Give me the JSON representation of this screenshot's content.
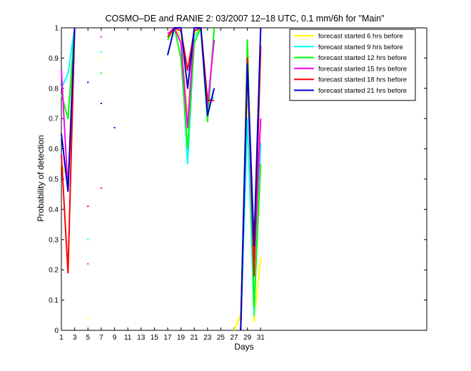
{
  "chart_data": {
    "type": "line",
    "title": "COSMO–DE and RANIE 2: 03/2007 12–18 UTC, 0.1 mm/6h for \"Main\"",
    "xlabel": "Days",
    "ylabel": "Probability of detection",
    "xlim": [
      1,
      56
    ],
    "ylim": [
      0,
      1
    ],
    "xticks": [
      1,
      3,
      5,
      7,
      9,
      11,
      13,
      15,
      17,
      19,
      21,
      23,
      25,
      27,
      29,
      31
    ],
    "yticks": [
      0,
      0.1,
      0.2,
      0.3,
      0.4,
      0.5,
      0.6,
      0.7,
      0.8,
      0.9,
      1
    ],
    "grid": false,
    "legend_position": "top-right",
    "series": [
      {
        "name": "forecast started 6 hrs before",
        "color": "#ffff00",
        "points": [
          [
            1,
            0.55
          ],
          [
            2,
            0.5
          ],
          [
            3,
            1.0
          ],
          [
            null,
            null
          ],
          [
            5,
            0.04
          ],
          [
            null,
            null
          ],
          [
            7,
            0.9
          ],
          [
            null,
            null
          ],
          [
            17,
            0.97
          ],
          [
            18,
            1.0
          ],
          [
            19,
            0.97
          ],
          [
            20,
            0.7
          ],
          [
            21,
            0.98
          ],
          [
            22,
            1.0
          ],
          [
            null,
            null
          ],
          [
            27,
            0.0
          ],
          [
            28,
            0.05
          ],
          [
            29,
            0.8
          ],
          [
            30,
            0.03
          ],
          [
            31,
            0.24
          ]
        ]
      },
      {
        "name": "forecast started 9 hrs before",
        "color": "#00ffff",
        "points": [
          [
            1,
            0.8
          ],
          [
            2,
            0.85
          ],
          [
            3,
            1.0
          ],
          [
            null,
            null
          ],
          [
            5,
            0.3
          ],
          [
            null,
            null
          ],
          [
            7,
            0.92
          ],
          [
            null,
            null
          ],
          [
            17,
            0.97
          ],
          [
            18,
            1.0
          ],
          [
            19,
            0.95
          ],
          [
            20,
            0.55
          ],
          [
            21,
            0.97
          ],
          [
            22,
            1.0
          ],
          [
            23,
            0.76
          ],
          [
            24,
            0.77
          ],
          [
            null,
            null
          ],
          [
            28,
            0.0
          ],
          [
            29,
            0.7
          ],
          [
            30,
            0.05
          ],
          [
            31,
            0.62
          ]
        ]
      },
      {
        "name": "forecast started 12 hrs before",
        "color": "#00ff00",
        "points": [
          [
            1,
            0.78
          ],
          [
            2,
            0.7
          ],
          [
            3,
            1.0
          ],
          [
            null,
            null
          ],
          [
            5,
            0.41
          ],
          [
            null,
            null
          ],
          [
            7,
            0.85
          ],
          [
            null,
            null
          ],
          [
            17,
            0.96
          ],
          [
            18,
            1.0
          ],
          [
            19,
            0.9
          ],
          [
            20,
            0.6
          ],
          [
            21,
            0.95
          ],
          [
            22,
            1.0
          ],
          [
            23,
            0.69
          ],
          [
            24,
            1.0
          ],
          [
            null,
            null
          ],
          [
            28,
            0.0
          ],
          [
            29,
            0.96
          ],
          [
            30,
            0.08
          ],
          [
            31,
            0.55
          ]
        ]
      },
      {
        "name": "forecast started 15 hrs before",
        "color": "#ff00ff",
        "points": [
          [
            1,
            0.86
          ],
          [
            2,
            0.46
          ],
          [
            3,
            1.0
          ],
          [
            null,
            null
          ],
          [
            5,
            0.22
          ],
          [
            null,
            null
          ],
          [
            7,
            0.97
          ],
          [
            null,
            null
          ],
          [
            17,
            0.98
          ],
          [
            18,
            1.0
          ],
          [
            19,
            0.95
          ],
          [
            20,
            0.67
          ],
          [
            21,
            1.0
          ],
          [
            22,
            1.0
          ],
          [
            23,
            0.74
          ],
          [
            24,
            0.96
          ],
          [
            null,
            null
          ],
          [
            28,
            0.0
          ],
          [
            29,
            0.88
          ],
          [
            30,
            0.2
          ],
          [
            31,
            0.7
          ]
        ]
      },
      {
        "name": "forecast started 18 hrs before",
        "color": "#ff0000",
        "points": [
          [
            1,
            0.58
          ],
          [
            2,
            0.19
          ],
          [
            3,
            1.0
          ],
          [
            null,
            null
          ],
          [
            5,
            0.41
          ],
          [
            null,
            null
          ],
          [
            7,
            0.47
          ],
          [
            null,
            null
          ],
          [
            17,
            0.97
          ],
          [
            18,
            1.0
          ],
          [
            19,
            0.99
          ],
          [
            20,
            0.86
          ],
          [
            21,
            0.99
          ],
          [
            22,
            1.0
          ],
          [
            23,
            0.76
          ],
          [
            24,
            0.76
          ],
          [
            null,
            null
          ],
          [
            28,
            0.0
          ],
          [
            29,
            0.9
          ],
          [
            30,
            0.18
          ],
          [
            31,
            0.94
          ]
        ]
      },
      {
        "name": "forecast started 21 hrs before",
        "color": "#0000cc",
        "points": [
          [
            1,
            0.65
          ],
          [
            2,
            0.46
          ],
          [
            3,
            1.0
          ],
          [
            null,
            null
          ],
          [
            5,
            0.82
          ],
          [
            null,
            null
          ],
          [
            7,
            0.75
          ],
          [
            null,
            null
          ],
          [
            9,
            0.67
          ],
          [
            null,
            null
          ],
          [
            17,
            0.91
          ],
          [
            18,
            1.0
          ],
          [
            19,
            1.0
          ],
          [
            20,
            0.8
          ],
          [
            21,
            1.0
          ],
          [
            22,
            1.0
          ],
          [
            23,
            0.71
          ],
          [
            24,
            0.8
          ],
          [
            null,
            null
          ],
          [
            28,
            0.0
          ],
          [
            29,
            0.88
          ],
          [
            30,
            0.28
          ],
          [
            31,
            1.0
          ]
        ]
      }
    ]
  }
}
